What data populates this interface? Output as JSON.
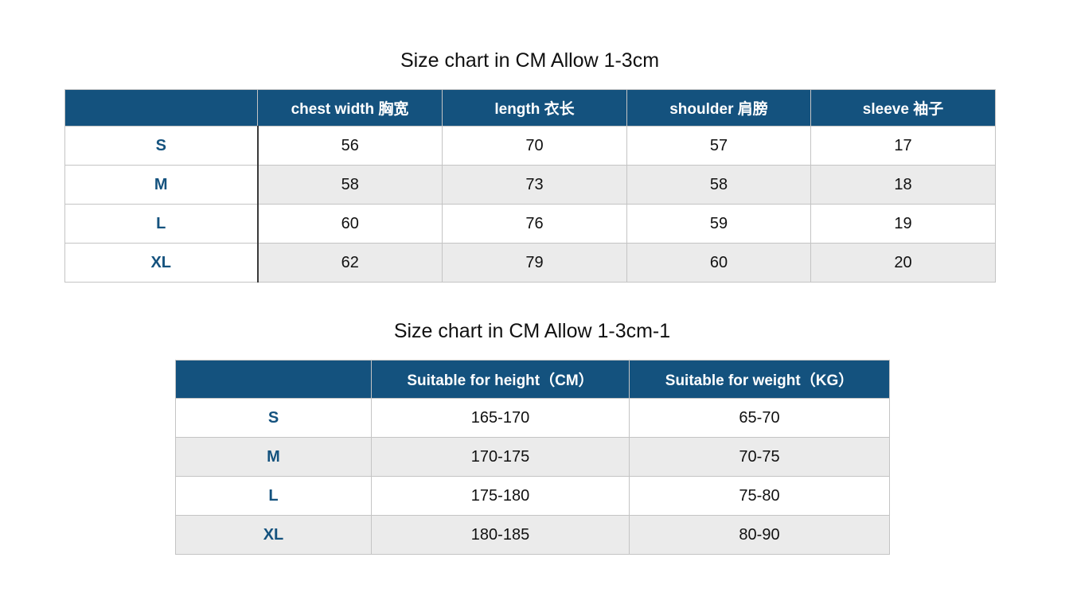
{
  "colors": {
    "header_background": "#14527E",
    "size_label_text": "#14527E",
    "stripe_row": "#EBEBEB",
    "grid_line": "#C4C4C4",
    "first_column_divider": "#3A3A3A",
    "body_text": "#111111",
    "header_text": "#FFFFFF"
  },
  "table1": {
    "title": "Size chart in CM Allow 1-3cm",
    "headers": [
      "",
      "chest width 胸宽",
      "length 衣长",
      "shoulder 肩膀",
      "sleeve 袖子"
    ],
    "rows": [
      {
        "label": "S",
        "values": [
          "56",
          "70",
          "57",
          "17"
        ]
      },
      {
        "label": "M",
        "values": [
          "58",
          "73",
          "58",
          "18"
        ]
      },
      {
        "label": "L",
        "values": [
          "60",
          "76",
          "59",
          "19"
        ]
      },
      {
        "label": "XL",
        "values": [
          "62",
          "79",
          "60",
          "20"
        ]
      }
    ]
  },
  "table2": {
    "title": "Size chart in CM Allow 1-3cm-1",
    "headers": [
      "",
      "Suitable for height（CM）",
      "Suitable for weight（KG）"
    ],
    "rows": [
      {
        "label": "S",
        "values": [
          "165-170",
          "65-70"
        ]
      },
      {
        "label": "M",
        "values": [
          "170-175",
          "70-75"
        ]
      },
      {
        "label": "L",
        "values": [
          "175-180",
          "75-80"
        ]
      },
      {
        "label": "XL",
        "values": [
          "180-185",
          "80-90"
        ]
      }
    ]
  }
}
